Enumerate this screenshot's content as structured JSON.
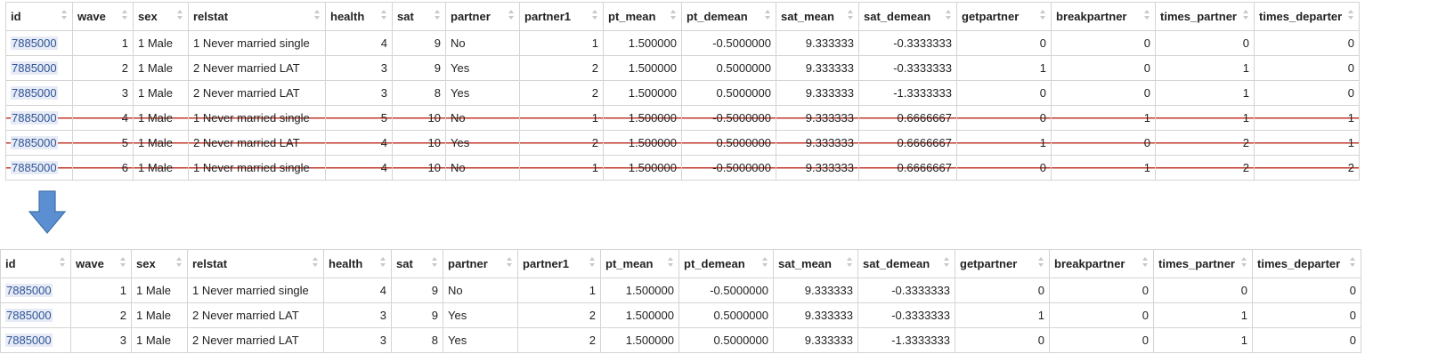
{
  "columns": [
    "id",
    "wave",
    "sex",
    "relstat",
    "health",
    "sat",
    "partner",
    "partner1",
    "pt_mean",
    "pt_demean",
    "sat_mean",
    "sat_demean",
    "getpartner",
    "breakpartner",
    "times_partner",
    "times_departer"
  ],
  "colors": {
    "strike": "#c0392b",
    "arrow": "#5b8fd1",
    "id_highlight": "#e7ebf5"
  },
  "top_table": {
    "rows": [
      {
        "id": "7885000",
        "wave": "1",
        "sex": "1 Male",
        "relstat": "1 Never married single",
        "health": "4",
        "sat": "9",
        "partner": "No",
        "partner1": "1",
        "pt_mean": "1.500000",
        "pt_demean": "-0.5000000",
        "sat_mean": "9.333333",
        "sat_demean": "-0.3333333",
        "getpartner": "0",
        "breakpartner": "0",
        "times_partner": "0",
        "times_departer": "0",
        "struck": false
      },
      {
        "id": "7885000",
        "wave": "2",
        "sex": "1 Male",
        "relstat": "2 Never married LAT",
        "health": "3",
        "sat": "9",
        "partner": "Yes",
        "partner1": "2",
        "pt_mean": "1.500000",
        "pt_demean": "0.5000000",
        "sat_mean": "9.333333",
        "sat_demean": "-0.3333333",
        "getpartner": "1",
        "breakpartner": "0",
        "times_partner": "1",
        "times_departer": "0",
        "struck": false
      },
      {
        "id": "7885000",
        "wave": "3",
        "sex": "1 Male",
        "relstat": "2 Never married LAT",
        "health": "3",
        "sat": "8",
        "partner": "Yes",
        "partner1": "2",
        "pt_mean": "1.500000",
        "pt_demean": "0.5000000",
        "sat_mean": "9.333333",
        "sat_demean": "-1.3333333",
        "getpartner": "0",
        "breakpartner": "0",
        "times_partner": "1",
        "times_departer": "0",
        "struck": false
      },
      {
        "id": "7885000",
        "wave": "4",
        "sex": "1 Male",
        "relstat": "1 Never married single",
        "health": "5",
        "sat": "10",
        "partner": "No",
        "partner1": "1",
        "pt_mean": "1.500000",
        "pt_demean": "-0.5000000",
        "sat_mean": "9.333333",
        "sat_demean": "0.6666667",
        "getpartner": "0",
        "breakpartner": "1",
        "times_partner": "1",
        "times_departer": "1",
        "struck": true
      },
      {
        "id": "7885000",
        "wave": "5",
        "sex": "1 Male",
        "relstat": "2 Never married LAT",
        "health": "4",
        "sat": "10",
        "partner": "Yes",
        "partner1": "2",
        "pt_mean": "1.500000",
        "pt_demean": "0.5000000",
        "sat_mean": "9.333333",
        "sat_demean": "0.6666667",
        "getpartner": "1",
        "breakpartner": "0",
        "times_partner": "2",
        "times_departer": "1",
        "struck": true
      },
      {
        "id": "7885000",
        "wave": "6",
        "sex": "1 Male",
        "relstat": "1 Never married single",
        "health": "4",
        "sat": "10",
        "partner": "No",
        "partner1": "1",
        "pt_mean": "1.500000",
        "pt_demean": "-0.5000000",
        "sat_mean": "9.333333",
        "sat_demean": "0.6666667",
        "getpartner": "0",
        "breakpartner": "1",
        "times_partner": "2",
        "times_departer": "2",
        "struck": true
      }
    ]
  },
  "arrow_icon": "down-arrow-icon",
  "bottom_table": {
    "rows": [
      {
        "id": "7885000",
        "wave": "1",
        "sex": "1 Male",
        "relstat": "1 Never married single",
        "health": "4",
        "sat": "9",
        "partner": "No",
        "partner1": "1",
        "pt_mean": "1.500000",
        "pt_demean": "-0.5000000",
        "sat_mean": "9.333333",
        "sat_demean": "-0.3333333",
        "getpartner": "0",
        "breakpartner": "0",
        "times_partner": "0",
        "times_departer": "0",
        "struck": false
      },
      {
        "id": "7885000",
        "wave": "2",
        "sex": "1 Male",
        "relstat": "2 Never married LAT",
        "health": "3",
        "sat": "9",
        "partner": "Yes",
        "partner1": "2",
        "pt_mean": "1.500000",
        "pt_demean": "0.5000000",
        "sat_mean": "9.333333",
        "sat_demean": "-0.3333333",
        "getpartner": "1",
        "breakpartner": "0",
        "times_partner": "1",
        "times_departer": "0",
        "struck": false
      },
      {
        "id": "7885000",
        "wave": "3",
        "sex": "1 Male",
        "relstat": "2 Never married LAT",
        "health": "3",
        "sat": "8",
        "partner": "Yes",
        "partner1": "2",
        "pt_mean": "1.500000",
        "pt_demean": "0.5000000",
        "sat_mean": "9.333333",
        "sat_demean": "-1.3333333",
        "getpartner": "0",
        "breakpartner": "0",
        "times_partner": "1",
        "times_departer": "0",
        "struck": false
      }
    ]
  }
}
